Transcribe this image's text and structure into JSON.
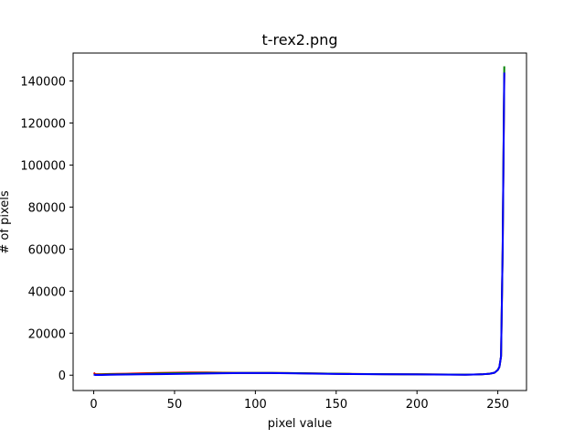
{
  "chart_data": {
    "type": "line",
    "title": "t-rex2.png",
    "xlabel": "pixel value",
    "ylabel": "# of pixels",
    "xlim": [
      -12.75,
      267.75
    ],
    "ylim": [
      -7300,
      153300
    ],
    "xticks": [
      0,
      50,
      100,
      150,
      200,
      250
    ],
    "yticks": [
      0,
      20000,
      40000,
      60000,
      80000,
      100000,
      120000,
      140000
    ],
    "grid": false,
    "series": [
      {
        "color": "#ff0000",
        "x": [
          0,
          1,
          5,
          10,
          20,
          30,
          40,
          50,
          60,
          70,
          80,
          90,
          100,
          110,
          120,
          130,
          140,
          150,
          160,
          170,
          180,
          190,
          200,
          210,
          220,
          230,
          235,
          240,
          245,
          248,
          250,
          251,
          252,
          253,
          254
        ],
        "y": [
          1200,
          500,
          500,
          600,
          700,
          900,
          1100,
          1200,
          1300,
          1300,
          1200,
          1100,
          1100,
          1100,
          1000,
          900,
          800,
          700,
          600,
          550,
          500,
          450,
          400,
          350,
          300,
          250,
          300,
          400,
          700,
          1200,
          2500,
          4000,
          9000,
          60000,
          144000
        ]
      },
      {
        "color": "#008000",
        "x": [
          0,
          1,
          5,
          10,
          20,
          30,
          40,
          50,
          60,
          70,
          80,
          90,
          100,
          110,
          120,
          130,
          140,
          150,
          160,
          170,
          180,
          190,
          200,
          210,
          220,
          230,
          235,
          240,
          245,
          248,
          250,
          251,
          252,
          253,
          254
        ],
        "y": [
          400,
          200,
          300,
          400,
          500,
          600,
          800,
          900,
          1000,
          1100,
          1100,
          1100,
          1100,
          1100,
          1000,
          900,
          800,
          700,
          600,
          550,
          500,
          450,
          400,
          350,
          300,
          250,
          300,
          400,
          700,
          1200,
          2500,
          4000,
          9000,
          60000,
          147000
        ]
      },
      {
        "color": "#0000ff",
        "x": [
          0,
          1,
          5,
          10,
          20,
          30,
          40,
          50,
          60,
          70,
          80,
          90,
          100,
          110,
          120,
          130,
          140,
          150,
          160,
          170,
          180,
          190,
          200,
          210,
          220,
          230,
          235,
          240,
          245,
          248,
          250,
          251,
          252,
          253,
          254
        ],
        "y": [
          300,
          100,
          100,
          200,
          300,
          400,
          500,
          600,
          700,
          800,
          900,
          1000,
          1000,
          1000,
          900,
          800,
          700,
          600,
          550,
          500,
          450,
          400,
          350,
          300,
          250,
          200,
          300,
          400,
          700,
          1200,
          2500,
          4000,
          9000,
          60000,
          144000
        ]
      }
    ]
  }
}
